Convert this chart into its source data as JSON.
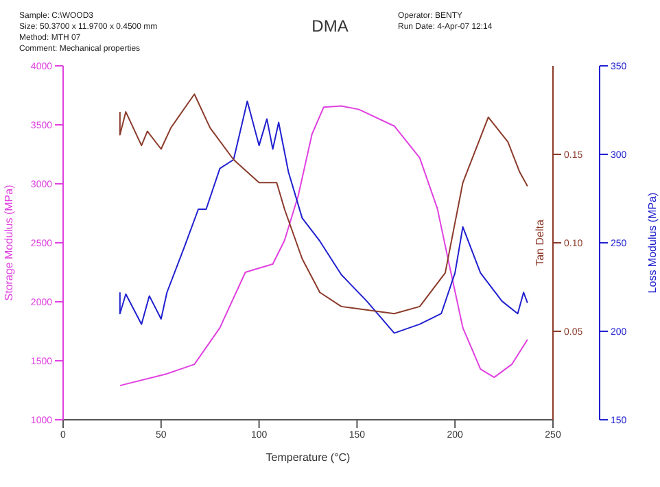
{
  "chart_data": {
    "type": "line",
    "title": "DMA",
    "xlabel": "Temperature (°C)",
    "ylabel": "Storage Modulus (MPa)",
    "y2label": "Loss Modulus (MPa)",
    "y3label": "Tan Delta",
    "annotations": [
      "Sample: C:\\WOOD3",
      "Size: 50.3700 x 11.9700 x 0.4500 mm",
      "Method: MTH 07",
      "Comment: Mechanical properties",
      "Operator: BENTY",
      "Run Date: 4-Apr-07 12:14"
    ],
    "xlim": [
      0,
      250
    ],
    "xticks": [
      0,
      50,
      100,
      150,
      200,
      250
    ],
    "ylim": [
      1000,
      4000
    ],
    "yticks": [
      1000,
      1500,
      2000,
      2500,
      3000,
      3500,
      4000
    ],
    "y2lim": [
      150,
      350
    ],
    "y2ticks": [
      150,
      200,
      250,
      300,
      350
    ],
    "y3lim": [
      0,
      0.2
    ],
    "y3ticks": [
      {
        "value": 0.05,
        "label": "0.05"
      },
      {
        "value": 0.1,
        "label": "0.10"
      },
      {
        "value": 0.15,
        "label": "0.15"
      }
    ],
    "marker": "none",
    "line_style": "solid",
    "series": [
      {
        "color": "#e040e0",
        "axis": "y",
        "x": [
          29,
          53,
          67,
          80,
          93,
          97,
          107,
          113,
          120,
          127,
          133,
          142,
          151,
          169,
          182,
          191,
          197,
          204,
          213,
          220,
          229,
          237
        ],
        "values": [
          1290,
          1390,
          1470,
          1780,
          2250,
          2270,
          2320,
          2520,
          2900,
          3420,
          3650,
          3660,
          3630,
          3490,
          3220,
          2790,
          2320,
          1780,
          1430,
          1360,
          1470,
          1680
        ]
      },
      {
        "color": "#2020d0",
        "axis": "y2",
        "x": [
          29,
          29,
          32,
          40,
          44,
          50,
          53,
          62,
          69,
          73,
          80,
          87,
          94,
          100,
          104,
          107,
          110,
          115,
          122,
          131,
          142,
          155,
          169,
          182,
          193,
          200,
          204,
          213,
          224,
          232,
          235,
          237
        ],
        "values": [
          222,
          210,
          221,
          204,
          220,
          207,
          222,
          248,
          269,
          269,
          292,
          297,
          330,
          305,
          320,
          303,
          318,
          290,
          264,
          251,
          232,
          217,
          199,
          204,
          210,
          233,
          259,
          233,
          217,
          210,
          222,
          216
        ]
      },
      {
        "color": "#8b3a2a",
        "axis": "y3",
        "x": [
          29,
          29,
          32,
          40,
          43,
          50,
          55,
          67,
          75,
          87,
          100,
          109,
          113,
          122,
          131,
          142,
          169,
          182,
          195,
          204,
          217,
          227,
          233,
          237
        ],
        "values": [
          0.174,
          0.161,
          0.174,
          0.155,
          0.163,
          0.153,
          0.165,
          0.184,
          0.165,
          0.147,
          0.134,
          0.134,
          0.119,
          0.091,
          0.072,
          0.064,
          0.06,
          0.064,
          0.083,
          0.134,
          0.171,
          0.157,
          0.14,
          0.132
        ]
      }
    ]
  }
}
